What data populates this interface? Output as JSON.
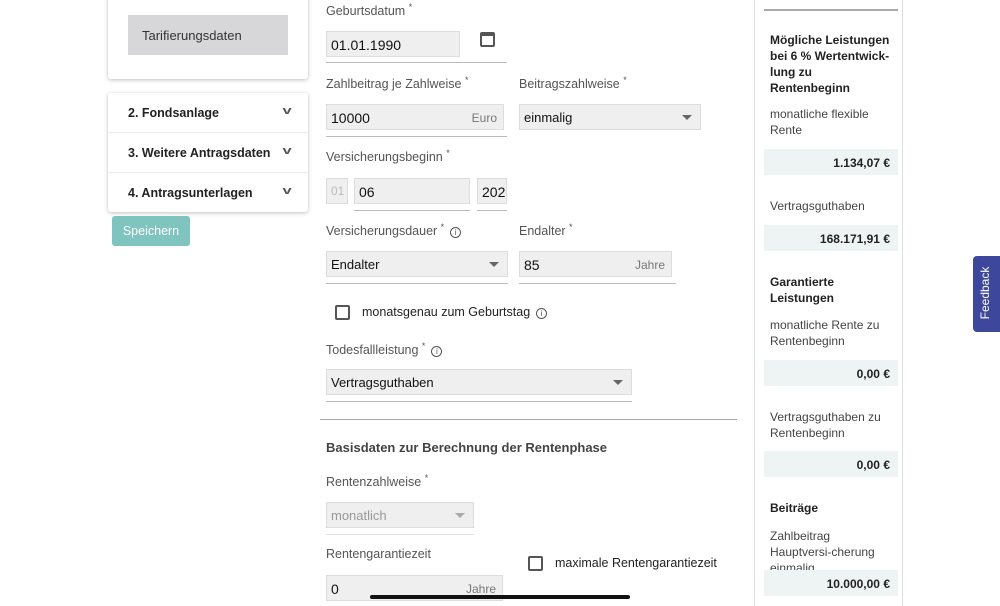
{
  "sidebar": {
    "active": "Tarifierungsdaten",
    "sections": [
      {
        "label": "2. Fondsanlage"
      },
      {
        "label": "3. Weitere Antragsdaten"
      },
      {
        "label": "4. Antragsunterlagen"
      }
    ],
    "save_label": "Speichern"
  },
  "form": {
    "geburtsdatum": {
      "label": "Geburtsdatum",
      "value": "01.01.1990"
    },
    "zahlbeitrag": {
      "label": "Zahlbeitrag je Zahlweise",
      "value": "10000",
      "unit": "Euro"
    },
    "beitragszahlweise": {
      "label": "Beitragszahlweise",
      "value": "einmalig"
    },
    "versicherungsbeginn": {
      "label": "Versicherungsbeginn",
      "day": "01",
      "month": "06",
      "year": "202"
    },
    "versicherungsdauer": {
      "label": "Versicherungsdauer",
      "value": "Endalter"
    },
    "endalter": {
      "label": "Endalter",
      "value": "85",
      "unit": "Jahre"
    },
    "monatsgenau": {
      "label": "monatsgenau zum Geburtstag",
      "checked": false
    },
    "todesfall": {
      "label": "Todesfallleistung",
      "value": "Vertragsguthaben"
    },
    "section_title": "Basisdaten zur Berechnung der Rentenphase",
    "rentenzahlweise": {
      "label": "Rentenzahlweise",
      "value": "monatlich"
    },
    "rentengarantiezeit": {
      "label": "Rentengarantiezeit",
      "value": "0",
      "unit": "Jahre"
    },
    "max_garantie": {
      "label": "maximale Rentengarantiezeit",
      "checked": false
    },
    "required": "*"
  },
  "summary": {
    "heading1": "Mögliche Leistungen bei 6 % Wertentwick-lung zu Rentenbeginn",
    "rente_label": "monatliche flexible Rente",
    "rente_value": "1.134,07 €",
    "guthaben_label": "Vertragsguthaben",
    "guthaben_value": "168.171,91 €",
    "heading2": "Garantierte Leistungen",
    "grente_label": "monatliche Rente zu Rentenbeginn",
    "grente_value": "0,00 €",
    "gguthaben_label": "Vertragsguthaben zu Rentenbeginn",
    "gguthaben_value": "0,00 €",
    "heading3": "Beiträge",
    "beitrag_label": "Zahlbeitrag Hauptversi-cherung einmalig",
    "beitrag_value": "10.000,00 €"
  },
  "feedback_label": "Feedback",
  "colors": {
    "accent": "#7fc4bf",
    "feedback": "#3d479b"
  }
}
